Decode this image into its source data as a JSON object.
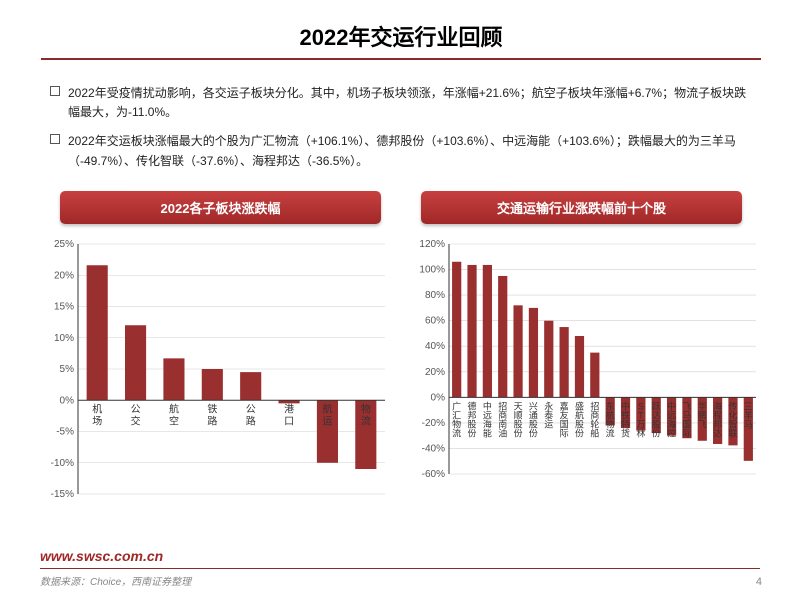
{
  "title": "2022年交运行业回顾",
  "bullets": [
    "2022年受疫情扰动影响，各交运子板块分化。其中，机场子板块领涨，年涨幅+21.6%；航空子板块年涨幅+6.7%；物流子板块跌幅最大，为-11.0%。",
    "2022年交运板块涨幅最大的个股为广汇物流（+106.1%）、德邦股份（+103.6%）、中远海能（+103.6%）；跌幅最大的为三羊马（-49.7%）、传化智联（-37.6%）、海程邦达（-36.5%）。"
  ],
  "chart1": {
    "title": "2022各子板块涨跌幅",
    "type": "bar",
    "categories": [
      "机场",
      "公交",
      "航空",
      "铁路",
      "公路",
      "港口",
      "航运",
      "物流"
    ],
    "values": [
      21.6,
      12.0,
      6.7,
      5.0,
      4.5,
      -0.5,
      -10.0,
      -11.0
    ],
    "ylim": [
      -15,
      25
    ],
    "ytick_step": 5,
    "bar_color": "#9a2f2f",
    "grid_color": "#d0d0d0",
    "axis_color": "#333333",
    "tick_fontsize": 10,
    "cat_fontsize": 10,
    "bar_width": 0.55
  },
  "chart2": {
    "title": "交通运输行业涨跌幅前十个股",
    "type": "bar",
    "categories": [
      "广汇物流",
      "德邦股份",
      "中远海能",
      "招商南油",
      "天顺股份",
      "兴通股份",
      "永泰运",
      "嘉友国际",
      "盛航股份",
      "招商轮船",
      "东航物流",
      "中铁特货",
      "ST万林",
      "跃达股份",
      "中远海控",
      "飞马国际",
      "华鹏飞",
      "海程邦达",
      "传化智联",
      "三羊马"
    ],
    "values": [
      106.1,
      103.6,
      103.6,
      95.0,
      72.0,
      70.0,
      60.0,
      55.0,
      48.0,
      35.0,
      -22.0,
      -24.0,
      -26.0,
      -28.0,
      -30.0,
      -32.0,
      -34.0,
      -36.5,
      -37.6,
      -49.7
    ],
    "ylim": [
      -60,
      120
    ],
    "ytick_step": 20,
    "bar_color": "#9a2f2f",
    "grid_color": "#d0d0d0",
    "axis_color": "#333333",
    "tick_fontsize": 10,
    "cat_fontsize": 9,
    "bar_width": 0.6
  },
  "footer": {
    "url": "www.swsc.com.cn",
    "source": "数据来源：Choice，西南证券整理",
    "page": "4"
  },
  "colors": {
    "accent": "#8b2a2a",
    "badge_top": "#c84040",
    "badge_bottom": "#a02828",
    "text": "#222222",
    "muted": "#888888"
  }
}
